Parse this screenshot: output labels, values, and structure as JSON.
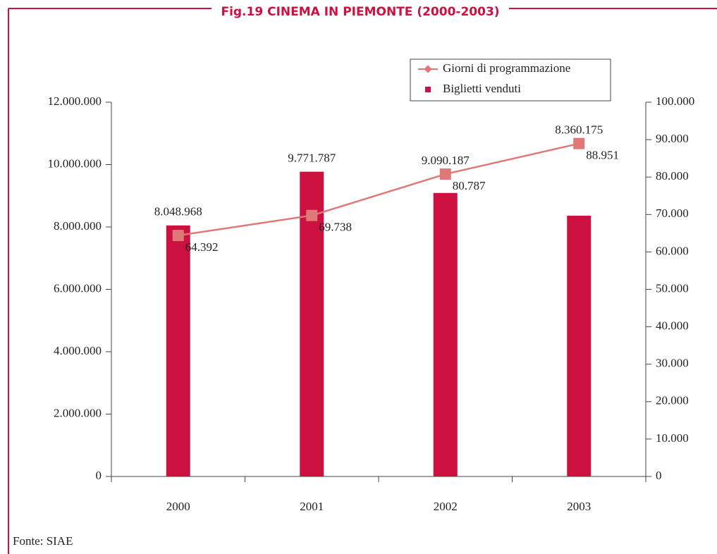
{
  "chart_data": {
    "type": "bar_line",
    "title": "Fig.19 CINEMA IN PIEMONTE (2000-2003)",
    "source": "Fonte: SIAE",
    "categories": [
      "2000",
      "2001",
      "2002",
      "2003"
    ],
    "series": [
      {
        "name": "Giorni di programmazione",
        "type": "line",
        "axis": "y2",
        "color": "#e07878",
        "values": [
          64392,
          69738,
          80787,
          88951
        ],
        "value_labels": [
          "64.392",
          "69.738",
          "80.787",
          "88.951"
        ]
      },
      {
        "name": "Biglietti venduti",
        "type": "bar",
        "color": "#cc1040",
        "values": [
          8048968,
          9771787,
          9090187,
          8360175
        ],
        "value_labels": [
          "8.048.968",
          "9.771.787",
          "9.090.187",
          "8.360.175"
        ]
      }
    ],
    "ylim": [
      0,
      12000000
    ],
    "yticks": [
      0,
      {
        "value": 2000000,
        "label": "2.000.000"
      },
      {
        "value": 4000000,
        "label": "4.000.000"
      },
      {
        "value": 6000000,
        "label": "6.000.000"
      },
      {
        "value": 8000000,
        "label": "8.000.000"
      },
      {
        "value": 10000000,
        "label": "10.000.000"
      },
      {
        "value": 12000000,
        "label": "12.000.000"
      }
    ],
    "y2lim": [
      0,
      100000
    ],
    "y2ticks": [
      0,
      {
        "value": 10000,
        "label": "10.000"
      },
      {
        "value": 20000,
        "label": "20.000"
      },
      {
        "value": 30000,
        "label": "30.000"
      },
      {
        "value": 40000,
        "label": "40.000"
      },
      {
        "value": 50000,
        "label": "50.000"
      },
      {
        "value": 60000,
        "label": "60.000"
      },
      {
        "value": 70000,
        "label": "70.000"
      },
      {
        "value": 80000,
        "label": "80.000"
      },
      {
        "value": 90000,
        "label": "90.000"
      },
      {
        "value": 100000,
        "label": "100.000"
      }
    ],
    "legend": "top-right"
  }
}
